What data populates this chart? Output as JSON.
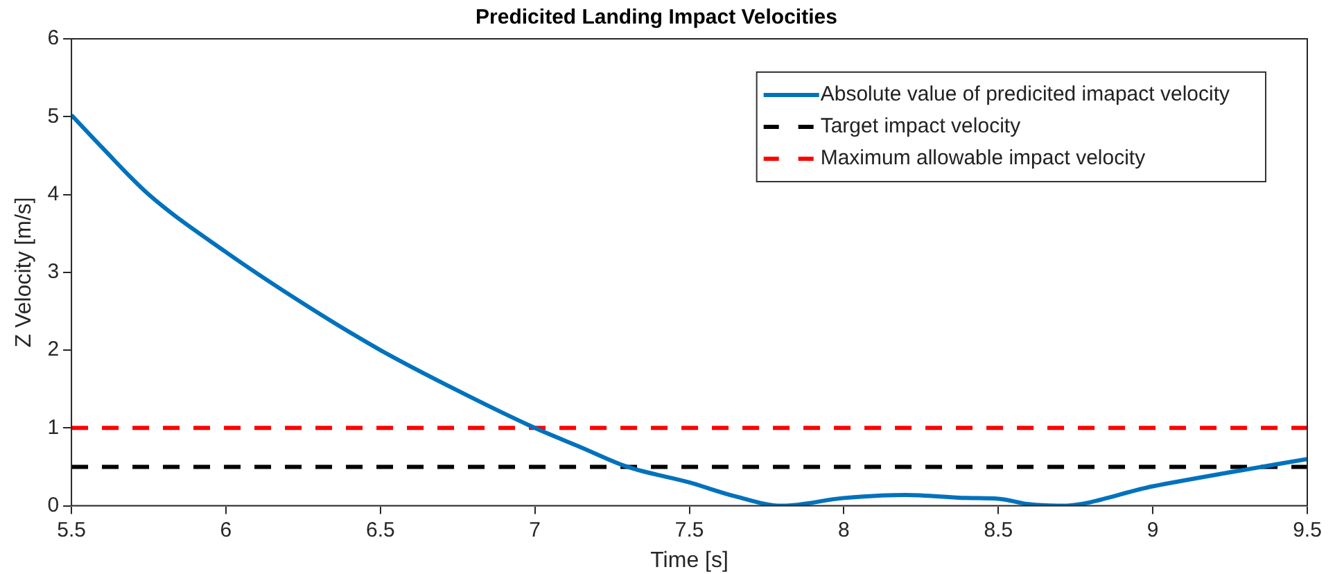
{
  "chart_data": {
    "type": "line",
    "title": "Predicited Landing Impact Velocities",
    "xlabel": "Time [s]",
    "ylabel": "Z Velocity [m/s]",
    "xlim": [
      5.5,
      9.5
    ],
    "xticks": [
      5.5,
      6,
      6.5,
      7,
      7.5,
      8,
      8.5,
      9,
      9.5
    ],
    "ylim": [
      0,
      6
    ],
    "yticks": [
      0,
      1,
      2,
      3,
      4,
      5,
      6
    ],
    "grid": false,
    "legend": "top right",
    "marker": "none",
    "series": [
      {
        "name": "Absolute value of predicited imapact velocity",
        "color": "#0072bd",
        "line_style": "solid",
        "x": [
          5.5,
          5.6,
          5.75,
          6,
          6.25,
          6.5,
          6.75,
          7,
          7.15,
          7.3,
          7.5,
          7.65,
          7.8,
          8,
          8.2,
          8.4,
          8.5,
          8.6,
          8.7,
          9,
          9.25,
          9.5
        ],
        "values": [
          5.02,
          4.6,
          4.0,
          3.26,
          2.6,
          2.0,
          1.48,
          1.0,
          0.75,
          0.5,
          0.3,
          0.12,
          0,
          0.1,
          0.14,
          0.1,
          0.09,
          0.02,
          0,
          0.25,
          0.43,
          0.6
        ]
      },
      {
        "name": "Target impact velocity",
        "color": "#000000",
        "line_style": "dashed",
        "x": [
          5.5,
          9.5
        ],
        "values": [
          0.5,
          0.5
        ]
      },
      {
        "name": "Maximum allowable impact velocity",
        "color": "#ff0000",
        "line_style": "dashed",
        "x": [
          5.5,
          9.5
        ],
        "values": [
          1,
          1
        ]
      }
    ]
  }
}
